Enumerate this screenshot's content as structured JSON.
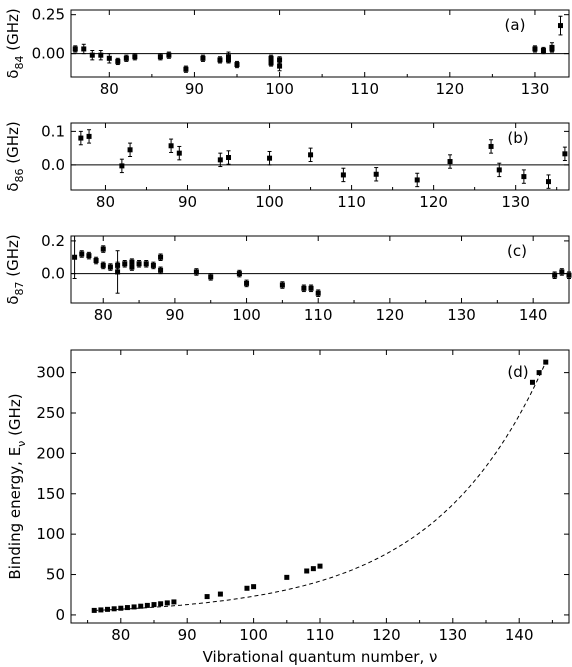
{
  "chart_data": [
    {
      "type": "scatter",
      "panel_label": "(a)",
      "ylabel_main": "δ",
      "ylabel_sub": "84",
      "ylabel_unit": " (GHz)",
      "xlim": [
        75.5,
        134
      ],
      "ylim": [
        -0.15,
        0.28
      ],
      "xticks": [
        80,
        90,
        100,
        110,
        120,
        130
      ],
      "yticks": [
        0.0,
        0.25
      ],
      "ytick_labels": [
        "0.00",
        "0.25"
      ],
      "zero_line": true,
      "series": [
        {
          "x": [
            76,
            77,
            78,
            79,
            80,
            81,
            82,
            83,
            86,
            87,
            89,
            91,
            93,
            94,
            94,
            95,
            99,
            99,
            100,
            100,
            130,
            131,
            132,
            132,
            133
          ],
          "y": [
            0.03,
            0.03,
            -0.01,
            -0.01,
            -0.03,
            -0.05,
            -0.03,
            -0.02,
            -0.02,
            -0.01,
            -0.1,
            -0.03,
            -0.04,
            -0.02,
            -0.04,
            -0.07,
            -0.03,
            -0.06,
            -0.04,
            -0.08,
            0.03,
            0.02,
            0.03,
            0.04,
            0.18
          ],
          "err": [
            0.02,
            0.03,
            0.03,
            0.03,
            0.03,
            0.02,
            0.02,
            0.02,
            0.02,
            0.02,
            0.02,
            0.02,
            0.02,
            0.03,
            0.02,
            0.02,
            0.02,
            0.02,
            0.02,
            0.03,
            0.02,
            0.02,
            0.02,
            0.03,
            0.06
          ]
        }
      ]
    },
    {
      "type": "scatter",
      "panel_label": "(b)",
      "ylabel_main": "δ",
      "ylabel_sub": "86",
      "ylabel_unit": " (GHz)",
      "xlim": [
        75.8,
        136.5
      ],
      "ylim": [
        -0.075,
        0.125
      ],
      "xticks": [
        80,
        90,
        100,
        110,
        120,
        130
      ],
      "yticks": [
        0.0,
        0.1
      ],
      "ytick_labels": [
        "0.0",
        "0.1"
      ],
      "zero_line": true,
      "series": [
        {
          "x": [
            77,
            78,
            82,
            83,
            88,
            89,
            94,
            95,
            100,
            105,
            109,
            113,
            118,
            122,
            127,
            128,
            131,
            134,
            136
          ],
          "y": [
            0.08,
            0.085,
            -0.003,
            0.045,
            0.057,
            0.035,
            0.015,
            0.022,
            0.02,
            0.03,
            -0.03,
            -0.028,
            -0.045,
            0.01,
            0.055,
            -0.015,
            -0.035,
            -0.05,
            0.033
          ]
        }
      ]
    },
    {
      "type": "scatter",
      "panel_label": "(c)",
      "ylabel_main": "δ",
      "ylabel_sub": "87",
      "ylabel_unit": " (GHz)",
      "xlim": [
        75.5,
        145
      ],
      "ylim": [
        -0.18,
        0.23
      ],
      "xticks": [
        80,
        90,
        100,
        110,
        120,
        130,
        140
      ],
      "yticks": [
        0.0,
        0.2
      ],
      "ytick_labels": [
        "0.0",
        "0.2"
      ],
      "zero_line": true,
      "series": [
        {
          "x": [
            76,
            77,
            78,
            79,
            80,
            80,
            81,
            82,
            82,
            83,
            84,
            84,
            85,
            86,
            87,
            88,
            88,
            93,
            95,
            99,
            100,
            105,
            108,
            109,
            110,
            143,
            144,
            145
          ],
          "y": [
            0.1,
            0.12,
            0.11,
            0.08,
            0.15,
            0.05,
            0.04,
            0.05,
            0.01,
            0.06,
            0.07,
            0.04,
            0.06,
            0.06,
            0.05,
            0.1,
            0.02,
            0.01,
            -0.02,
            0.0,
            -0.06,
            -0.07,
            -0.09,
            -0.09,
            -0.12,
            -0.01,
            0.01,
            -0.01
          ]
        }
      ]
    },
    {
      "type": "scatter",
      "panel_label": "(d)",
      "xlabel": "Vibrational quantum number, ν",
      "ylabel_main": "Binding energy, E",
      "ylabel_sub": "ν",
      "ylabel_unit": " (GHz)",
      "xlim": [
        72.5,
        147.5
      ],
      "ylim": [
        -10,
        328
      ],
      "xticks": [
        80,
        90,
        100,
        110,
        120,
        130,
        140
      ],
      "yticks": [
        0,
        50,
        100,
        150,
        200,
        250,
        300
      ],
      "series": [
        {
          "x": [
            76,
            77,
            78,
            79,
            80,
            81,
            82,
            83,
            84,
            85,
            86,
            87,
            88,
            93,
            95,
            99,
            100,
            105,
            108,
            109,
            110,
            142,
            143,
            144
          ],
          "y": [
            5.6,
            6.2,
            6.9,
            7.6,
            8.3,
            9.1,
            9.9,
            10.8,
            11.8,
            12.8,
            13.8,
            14.9,
            16.1,
            22.7,
            25.8,
            33,
            35,
            46.5,
            54.4,
            57.3,
            60.4,
            288,
            300,
            313
          ]
        }
      ]
    }
  ]
}
